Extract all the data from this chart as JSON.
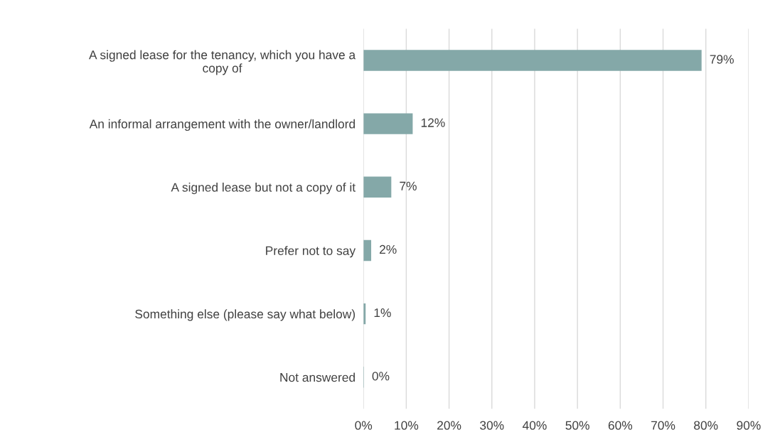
{
  "chart_data": {
    "type": "bar",
    "orientation": "horizontal",
    "categories": [
      "A signed lease for the tenancy, which you have a\ncopy of",
      "An informal arrangement with the owner/landlord",
      "A signed lease but not a copy of it",
      "Prefer not to say",
      "Something else (please say what below)",
      "Not answered"
    ],
    "values": [
      79,
      11.5,
      6.5,
      1.8,
      0.5,
      0.1
    ],
    "value_labels": [
      "79%",
      "12%",
      "7%",
      "2%",
      "1%",
      "0%"
    ],
    "color": "#84a8a8",
    "xlim": [
      0,
      90
    ],
    "xticks": [
      {
        "value": 0,
        "label": "0%"
      },
      {
        "value": 10,
        "label": "10%"
      },
      {
        "value": 20,
        "label": "20%"
      },
      {
        "value": 30,
        "label": "30%"
      },
      {
        "value": 40,
        "label": "40%"
      },
      {
        "value": 50,
        "label": "50%"
      },
      {
        "value": 60,
        "label": "60%"
      },
      {
        "value": 70,
        "label": "70%"
      },
      {
        "value": 80,
        "label": "80%"
      },
      {
        "value": 90,
        "label": "90%"
      }
    ],
    "grid": "x"
  }
}
